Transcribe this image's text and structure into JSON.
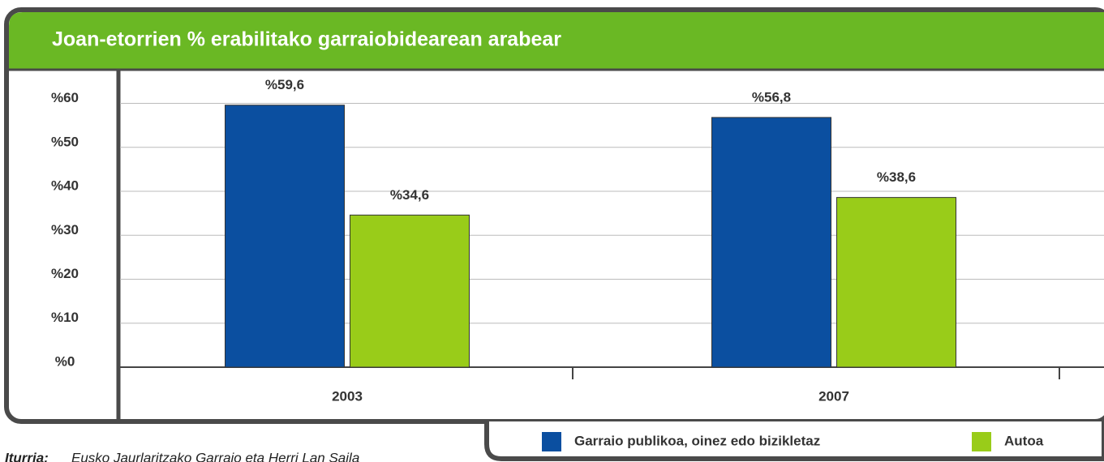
{
  "chart_data": {
    "type": "bar",
    "title": "Joan-etorrien % erabilitako garraiobidearean arabear",
    "categories": [
      "2003",
      "2007"
    ],
    "series": [
      {
        "name": "Garraio publikoa, oinez edo bizikletaz",
        "color": "#0b4fa0",
        "values": [
          59.6,
          56.8
        ],
        "value_labels": [
          "%59,6",
          "%56,8"
        ]
      },
      {
        "name": "Autoa",
        "color": "#99cc19",
        "values": [
          34.6,
          38.6
        ],
        "value_labels": [
          "%34,6",
          "%38,6"
        ]
      }
    ],
    "ylim": [
      0,
      66
    ],
    "yticks": [
      {
        "value": 0,
        "label": "%0"
      },
      {
        "value": 10,
        "label": "%10"
      },
      {
        "value": 20,
        "label": "%20"
      },
      {
        "value": 30,
        "label": "%30"
      },
      {
        "value": 40,
        "label": "%40"
      },
      {
        "value": 50,
        "label": "%50"
      },
      {
        "value": 60,
        "label": "%60"
      }
    ],
    "grid": true,
    "source": {
      "label": "Iturria:",
      "text": "Eusko Jaurlaritzako Garraio eta Herri Lan Saila"
    }
  }
}
